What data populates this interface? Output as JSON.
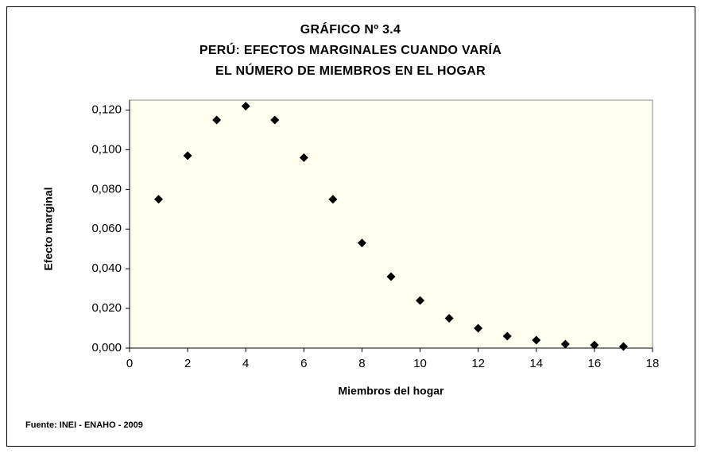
{
  "chart_data": {
    "type": "scatter",
    "title": [
      "GRÁFICO Nº 3.4",
      "PERÚ: EFECTOS MARGINALES CUANDO VARÍA",
      "EL NÚMERO DE MIEMBROS EN EL HOGAR"
    ],
    "x_label": "Miembros del hogar",
    "y_label": "Efecto marginal",
    "source": "Fuente: INEI - ENAHO - 2009",
    "x": [
      1,
      2,
      3,
      4,
      5,
      6,
      7,
      8,
      9,
      10,
      11,
      12,
      13,
      14,
      15,
      16,
      17
    ],
    "values": [
      0.075,
      0.097,
      0.115,
      0.122,
      0.115,
      0.096,
      0.075,
      0.053,
      0.036,
      0.024,
      0.015,
      0.01,
      0.006,
      0.004,
      0.002,
      0.0015,
      0.0008
    ],
    "color": "#000000",
    "xlim": [
      0,
      18
    ],
    "xticks": [
      0,
      2,
      4,
      6,
      8,
      10,
      12,
      14,
      16,
      18
    ],
    "ylim": [
      0,
      0.125
    ],
    "yticks": [
      {
        "value": 0,
        "label": "0,000"
      },
      {
        "value": 0.02,
        "label": "0,020"
      },
      {
        "value": 0.04,
        "label": "0,040"
      },
      {
        "value": 0.06,
        "label": "0,060"
      },
      {
        "value": 0.08,
        "label": "0,080"
      },
      {
        "value": 0.1,
        "label": "0,100"
      },
      {
        "value": 0.12,
        "label": "0,120"
      }
    ],
    "plot_background": "#fffff0"
  }
}
